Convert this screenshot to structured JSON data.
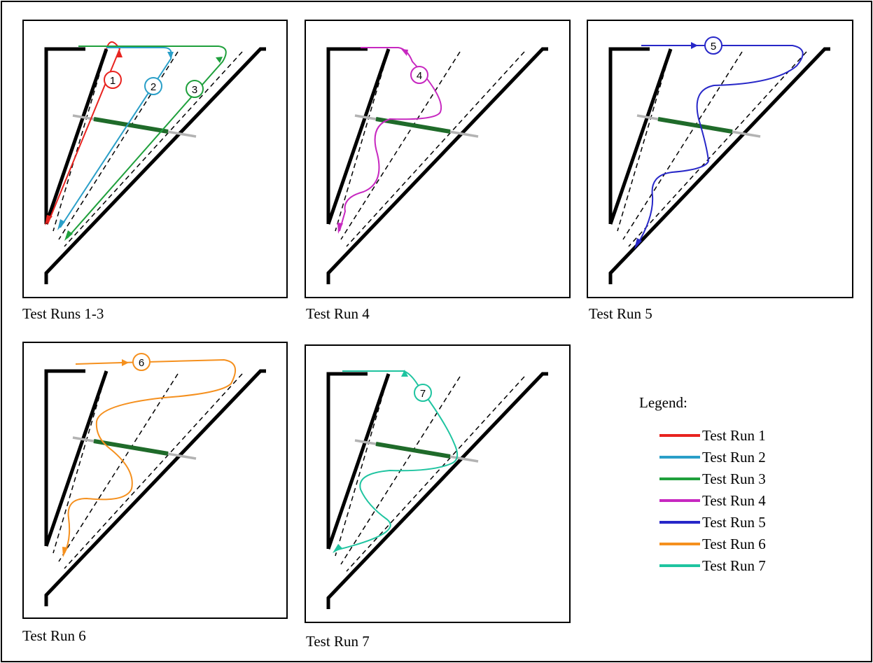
{
  "panels": [
    {
      "caption": "Test Runs 1-3",
      "runs": [
        {
          "label": "1",
          "color": "#e8231f"
        },
        {
          "label": "2",
          "color": "#2a9fc8"
        },
        {
          "label": "3",
          "color": "#1fa03c"
        }
      ]
    },
    {
      "caption": "Test Run 4",
      "runs": [
        {
          "label": "4",
          "color": "#c728c0"
        }
      ]
    },
    {
      "caption": "Test Run 5",
      "runs": [
        {
          "label": "5",
          "color": "#2727c8"
        }
      ]
    },
    {
      "caption": "Test Run 6",
      "runs": [
        {
          "label": "6",
          "color": "#f5901e"
        }
      ]
    },
    {
      "caption": "Test Run 7",
      "runs": [
        {
          "label": "7",
          "color": "#1fc4a0"
        }
      ]
    }
  ],
  "legend": {
    "title": "Legend:",
    "items": [
      {
        "label": "Test Run 1",
        "color": "#e8231f"
      },
      {
        "label": "Test Run 2",
        "color": "#2a9fc8"
      },
      {
        "label": "Test Run 3",
        "color": "#1fa03c"
      },
      {
        "label": "Test Run 4",
        "color": "#c728c0"
      },
      {
        "label": "Test Run 5",
        "color": "#2727c8"
      },
      {
        "label": "Test Run 6",
        "color": "#f5901e"
      },
      {
        "label": "Test Run 7",
        "color": "#1fc4a0"
      }
    ]
  },
  "colors": {
    "wall": "#000000",
    "gate_bar": "#1f6b2a",
    "gate_line": "#b3b3b3",
    "guide": "#000000"
  }
}
